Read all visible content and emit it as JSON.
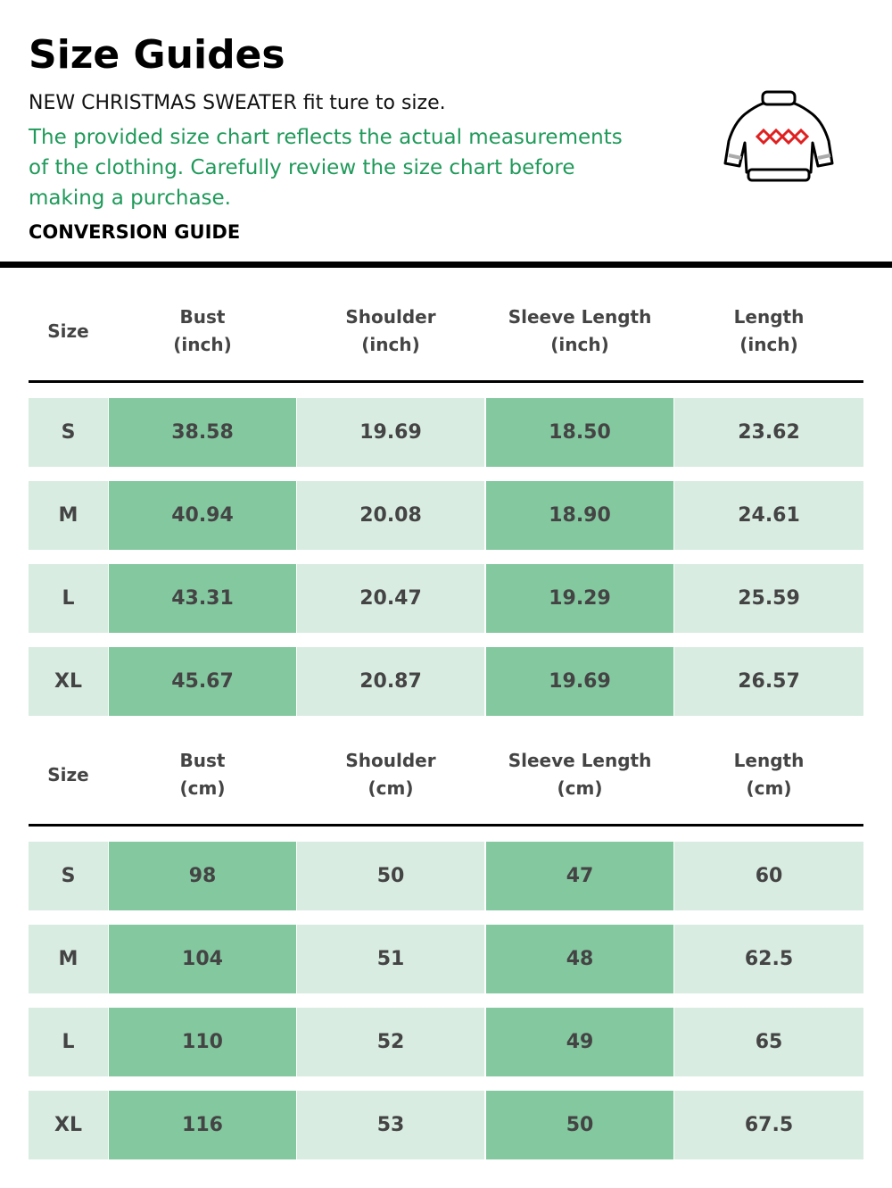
{
  "header": {
    "title": "Size Guides",
    "subtitle": "NEW CHRISTMAS SWEATER fit ture to size.",
    "description": [
      "The provided size chart reflects the actual measurements",
      "of the clothing. Carefully review the size chart before",
      "making a purchase."
    ],
    "section": "CONVERSION GUIDE"
  },
  "tables": [
    {
      "columns": [
        [
          "Size"
        ],
        [
          "Bust",
          "(inch)"
        ],
        [
          "Shoulder",
          "(inch)"
        ],
        [
          "Sleeve Length",
          "(inch)"
        ],
        [
          "Length",
          "(inch)"
        ]
      ],
      "rows": [
        [
          "S",
          "38.58",
          "19.69",
          "18.50",
          "23.62"
        ],
        [
          "M",
          "40.94",
          "20.08",
          "18.90",
          "24.61"
        ],
        [
          "L",
          "43.31",
          "20.47",
          "19.29",
          "25.59"
        ],
        [
          "XL",
          "45.67",
          "20.87",
          "19.69",
          "26.57"
        ]
      ]
    },
    {
      "columns": [
        [
          "Size"
        ],
        [
          "Bust",
          "(cm)"
        ],
        [
          "Shoulder",
          "(cm)"
        ],
        [
          "Sleeve Length",
          "(cm)"
        ],
        [
          "Length",
          "(cm)"
        ]
      ],
      "rows": [
        [
          "S",
          "98",
          "50",
          "47",
          "60"
        ],
        [
          "M",
          "104",
          "51",
          "48",
          "62.5"
        ],
        [
          "L",
          "110",
          "52",
          "49",
          "65"
        ],
        [
          "XL",
          "116",
          "53",
          "50",
          "67.5"
        ]
      ]
    }
  ]
}
